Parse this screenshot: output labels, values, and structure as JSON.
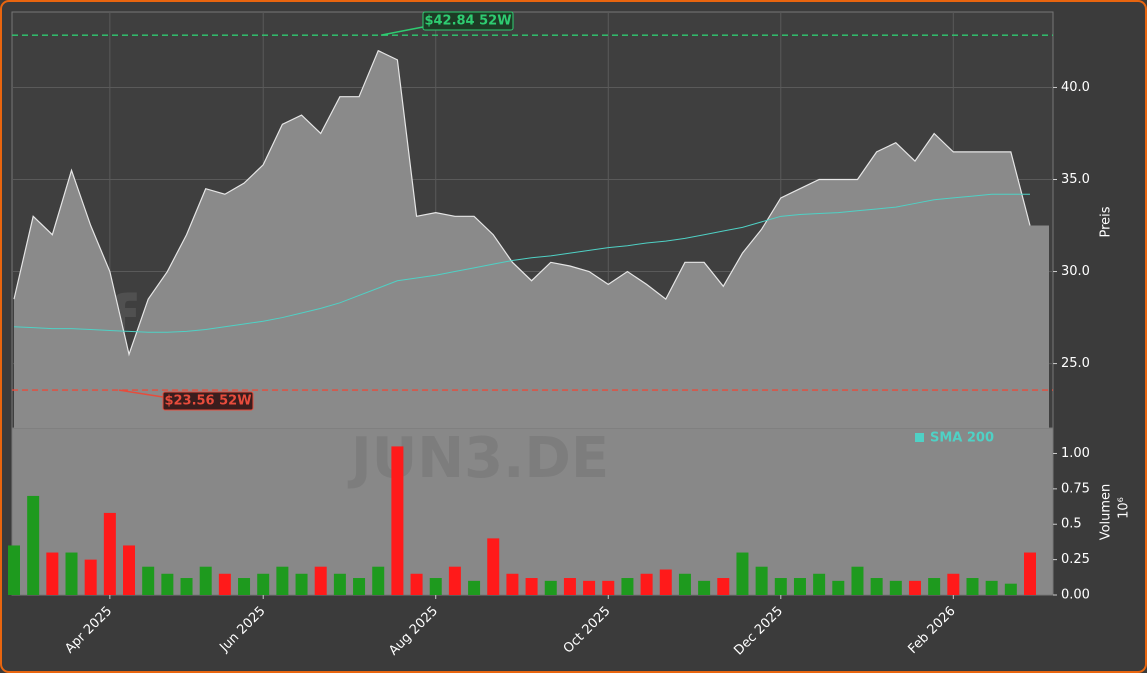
{
  "chart_data": {
    "type": "area",
    "watermarks": [
      "forexsignale.trade",
      "JUN3.DE"
    ],
    "y_label": "Preis",
    "ylim": [
      21.5,
      44.1
    ],
    "yticks": [
      {
        "value": 25,
        "label": "25.0"
      },
      {
        "value": 30,
        "label": "30.0"
      },
      {
        "value": 35,
        "label": "35.0"
      },
      {
        "value": 40,
        "label": "40.0"
      }
    ],
    "grid": true,
    "categories": [
      null,
      null,
      null,
      null,
      null,
      "Apr 2025",
      null,
      null,
      null,
      null,
      null,
      null,
      null,
      "Jun 2025",
      null,
      null,
      null,
      null,
      null,
      null,
      null,
      null,
      "Aug 2025",
      null,
      null,
      null,
      null,
      null,
      null,
      null,
      null,
      "Oct 2025",
      null,
      null,
      null,
      null,
      null,
      null,
      null,
      null,
      "Dec 2025",
      null,
      null,
      null,
      null,
      null,
      null,
      null,
      null,
      "Feb 2026",
      null,
      null,
      null,
      null
    ],
    "series": [
      {
        "color": "#8a8a8a",
        "values": [
          28.5,
          33.0,
          32.0,
          35.5,
          32.5,
          30.0,
          25.5,
          28.5,
          30.0,
          32.0,
          34.5,
          34.2,
          34.8,
          35.8,
          38.0,
          38.5,
          37.5,
          39.5,
          39.5,
          42.0,
          41.5,
          33.0,
          33.2,
          33.0,
          33.0,
          32.0,
          30.5,
          29.5,
          30.5,
          30.3,
          30.0,
          29.3,
          30.0,
          29.3,
          28.5,
          30.5,
          30.5,
          29.2,
          31.0,
          32.3,
          34.0,
          34.5,
          35.0,
          35.0,
          35.0,
          36.5,
          37.0,
          36.0,
          37.5,
          36.5,
          36.5,
          36.5,
          36.5,
          32.5
        ]
      },
      {
        "name": "SMA 200",
        "color": "#4fd1c5",
        "values": [
          27.0,
          26.95,
          26.9,
          26.9,
          26.85,
          26.8,
          26.75,
          26.7,
          26.7,
          26.75,
          26.85,
          27.0,
          27.15,
          27.3,
          27.5,
          27.75,
          28.0,
          28.3,
          28.7,
          29.1,
          29.5,
          29.65,
          29.8,
          30.0,
          30.2,
          30.4,
          30.6,
          30.75,
          30.85,
          31.0,
          31.15,
          31.3,
          31.4,
          31.55,
          31.65,
          31.8,
          32.0,
          32.2,
          32.4,
          32.7,
          33.0,
          33.1,
          33.15,
          33.2,
          33.3,
          33.4,
          33.5,
          33.7,
          33.9,
          34.0,
          34.1,
          34.2,
          34.2,
          34.2
        ]
      }
    ],
    "hlines": [
      {
        "value": 42.84,
        "label": "$42.84 52W",
        "color": "#2ecc71"
      },
      {
        "value": 23.56,
        "label": "$23.56 52W",
        "color": "#e74c3c"
      }
    ],
    "volume": {
      "y_label": "Volumen",
      "offset_label": "10⁶",
      "up_color": "#1e9a1e",
      "down_color": "#ff1a1a",
      "ylim": [
        0,
        1.18
      ],
      "yticks": [
        {
          "value": 0,
          "label": "0.00"
        },
        0.25,
        0.5,
        0.75,
        {
          "value": 1,
          "label": "1.00"
        }
      ],
      "values": [
        0.35,
        0.7,
        0.3,
        0.3,
        0.25,
        0.58,
        0.35,
        0.2,
        0.15,
        0.12,
        0.2,
        0.15,
        0.12,
        0.15,
        0.2,
        0.15,
        0.2,
        0.15,
        0.12,
        0.2,
        1.05,
        0.15,
        0.12,
        0.2,
        0.1,
        0.4,
        0.15,
        0.12,
        0.1,
        0.12,
        0.1,
        0.1,
        0.12,
        0.15,
        0.18,
        0.15,
        0.1,
        0.12,
        0.3,
        0.2,
        0.12,
        0.12,
        0.15,
        0.1,
        0.2,
        0.12,
        0.1,
        0.1,
        0.12,
        0.15,
        0.12,
        0.1,
        0.08,
        0.3
      ]
    }
  }
}
